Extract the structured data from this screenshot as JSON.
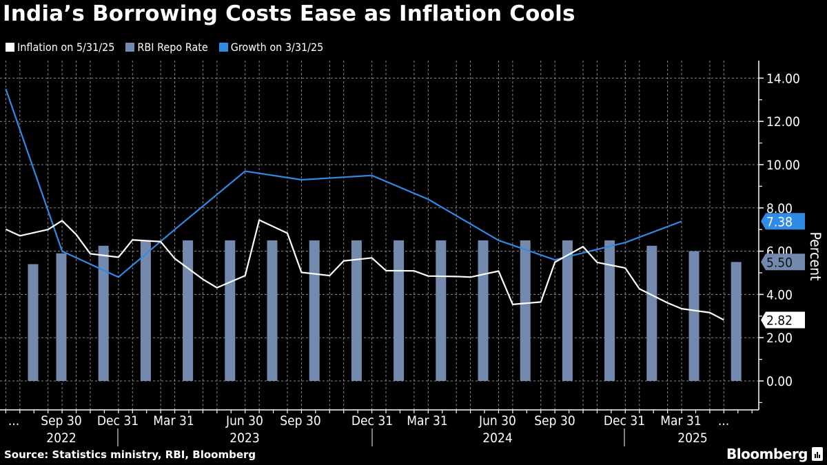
{
  "title": "India’s Borrowing Costs Ease as Inflation Cools",
  "source": "Source: Statistics ministry, RBI, Bloomberg",
  "brand": "Bloomberg",
  "legend": [
    {
      "label": "Inflation on 5/31/25",
      "color": "#ffffff"
    },
    {
      "label": "RBI Repo Rate",
      "color": "#7389ad"
    },
    {
      "label": "Growth on 3/31/25",
      "color": "#2f8be6"
    }
  ],
  "chart_data": {
    "type": "bar+line",
    "title": "India’s Borrowing Costs Ease as Inflation Cools",
    "ylabel": "Percent",
    "ylim": [
      -1.2,
      14.5
    ],
    "y_ticks": [
      "0.00",
      "2.00",
      "4.00",
      "6.00",
      "8.00",
      "10.00",
      "12.00",
      "14.00"
    ],
    "y_axis_side": "right",
    "grid": true,
    "legend_position": "top-left",
    "x_tick_labels": [
      "...",
      "Sep 30",
      "Dec 31",
      "Mar 31",
      "Jun 30",
      "Sep 30",
      "Dec 31",
      "Mar 31",
      "Jun 30",
      "Sep 30",
      "Dec 31",
      "Mar 31",
      "..."
    ],
    "x_year_labels": [
      "2022",
      "2023",
      "2024",
      "2025"
    ],
    "series": [
      {
        "name": "Inflation on 5/31/25",
        "type": "line",
        "color": "#ffffff",
        "x": [
          "2022-06",
          "2022-07",
          "2022-08",
          "2022-09",
          "2022-10",
          "2022-11",
          "2022-12",
          "2023-01",
          "2023-02",
          "2023-03",
          "2023-04",
          "2023-05",
          "2023-06",
          "2023-07",
          "2023-08",
          "2023-09",
          "2023-10",
          "2023-11",
          "2023-12",
          "2024-01",
          "2024-02",
          "2024-03",
          "2024-04",
          "2024-05",
          "2024-06",
          "2024-07",
          "2024-08",
          "2024-09",
          "2024-10",
          "2024-11",
          "2024-12",
          "2025-01",
          "2025-02",
          "2025-03",
          "2025-04",
          "2025-05"
        ],
        "values": [
          7.01,
          6.71,
          7.0,
          7.41,
          6.77,
          5.88,
          5.72,
          6.52,
          6.44,
          5.66,
          4.7,
          4.31,
          4.87,
          7.44,
          6.83,
          5.02,
          4.87,
          5.55,
          5.69,
          5.1,
          5.09,
          4.85,
          4.83,
          4.8,
          5.08,
          3.54,
          3.65,
          5.49,
          6.21,
          5.48,
          5.22,
          4.26,
          3.61,
          3.34,
          3.16,
          2.82
        ],
        "last_value_label": "2.82"
      },
      {
        "name": "RBI Repo Rate",
        "type": "bar",
        "color": "#7389ad",
        "values": [
          5.4,
          5.9,
          6.25,
          6.5,
          6.5,
          6.5,
          6.5,
          6.5,
          6.5,
          6.5,
          6.5,
          6.5,
          6.5,
          6.5,
          6.5,
          6.25,
          6.0,
          5.5
        ],
        "last_value_label": "5.50"
      },
      {
        "name": "Growth on 3/31/25",
        "type": "line",
        "color": "#2f8be6",
        "x": [
          "2022-06",
          "2022-09",
          "2022-12",
          "2023-03",
          "2023-06",
          "2023-09",
          "2023-12",
          "2024-03",
          "2024-06",
          "2024-09",
          "2024-12",
          "2025-03"
        ],
        "values": [
          13.5,
          6.0,
          4.8,
          7.0,
          9.7,
          9.3,
          9.5,
          8.4,
          6.5,
          5.6,
          6.4,
          7.38
        ],
        "last_value_label": "7.38"
      }
    ]
  }
}
